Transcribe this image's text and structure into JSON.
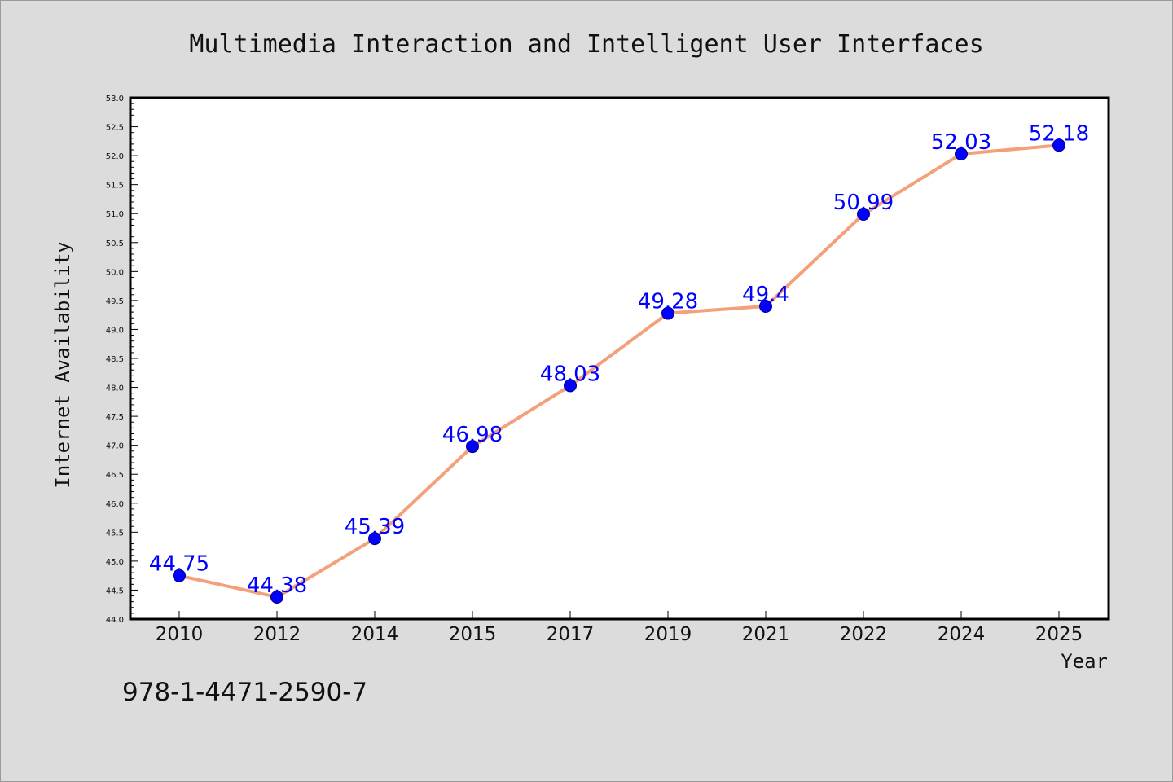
{
  "chart_data": {
    "type": "line",
    "title": "Multimedia Interaction and Intelligent User Interfaces",
    "xlabel": "Year",
    "ylabel": "Internet Availability",
    "categories": [
      "2010",
      "2012",
      "2014",
      "2015",
      "2017",
      "2019",
      "2021",
      "2022",
      "2024",
      "2025"
    ],
    "series": [
      {
        "values": [
          44.75,
          44.38,
          45.39,
          46.98,
          48.03,
          49.28,
          49.4,
          50.99,
          52.03,
          52.18
        ],
        "labels": [
          "44.75",
          "44.38",
          "45.39",
          "46.98",
          "48.03",
          "49.28",
          "49.4",
          "50.99",
          "52.03",
          "52.18"
        ],
        "line_color": "#f4a07a",
        "marker_color": "#0000ff"
      }
    ],
    "ylim": [
      44.0,
      53.0
    ],
    "yticks": [
      "44.0",
      "44.5",
      "45.0",
      "45.5",
      "46.0",
      "46.5",
      "47.0",
      "47.5",
      "48.0",
      "48.5",
      "49.0",
      "49.5",
      "50.0",
      "50.5",
      "51.0",
      "51.5",
      "52.0",
      "52.5",
      "53.0"
    ],
    "grid": false,
    "data_label_color": "#0000ff"
  },
  "footer": {
    "isbn": "978-1-4471-2590-7"
  }
}
